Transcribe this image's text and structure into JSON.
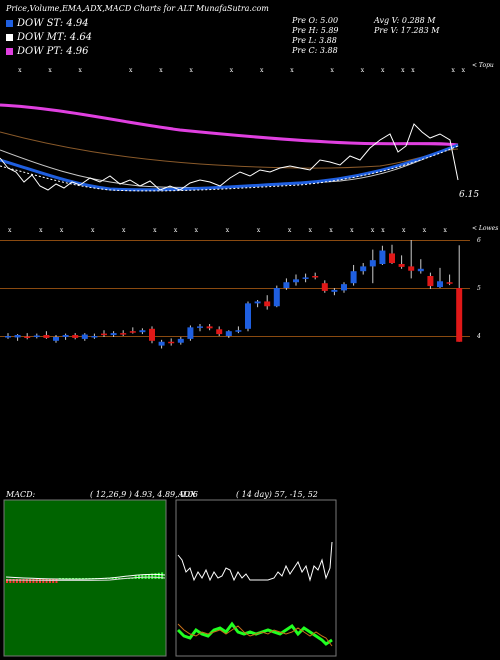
{
  "header": {
    "title": "Price,Volume,EMA,ADX,MACD Charts for ALT MunafaSutra.com",
    "pre_open": "Pre O: 5.00",
    "pre_high": "Pre H: 5.89",
    "pre_low": "Pre L: 3.88",
    "pre_close": "Pre C: 3.88",
    "avg_volume": "Avg V: 0.288 M",
    "pre_volume": "Pre V: 17.283 M"
  },
  "legend": [
    {
      "label": "DOW ST: 4.94",
      "color": "#1f5fe0"
    },
    {
      "label": "DOW MT: 4.64",
      "color": "#ffffff"
    },
    {
      "label": "DOW PT: 4.96",
      "color": "#e040e0"
    }
  ],
  "colors": {
    "up": "#1f5fe0",
    "down": "#e01818",
    "ema_long": "#e040e0",
    "ema_mid": "#8a5a2a",
    "gridline": "#8a4a10"
  },
  "ema_panel": {
    "corner_label": "< Topu",
    "last_value": "6.15",
    "marker_char": "x"
  },
  "price_panel": {
    "corner_label": "< Lowes",
    "levels": [
      "6",
      "5",
      "4"
    ]
  },
  "macd": {
    "title": "MACD:",
    "params": "( 12,26,9 ) 4.93, 4.89, 0.06"
  },
  "adx": {
    "title": "ADX",
    "params": "( 14 day) 57, -15, 52"
  },
  "chart_data": {
    "type": "candlestick",
    "levels": [
      6,
      5,
      4
    ],
    "candles": [
      {
        "o": 4.0,
        "h": 4.06,
        "l": 3.94,
        "c": 4.0
      },
      {
        "o": 3.97,
        "h": 4.04,
        "l": 3.9,
        "c": 4.02
      },
      {
        "o": 3.99,
        "h": 4.06,
        "l": 3.93,
        "c": 3.98
      },
      {
        "o": 4.0,
        "h": 4.05,
        "l": 3.95,
        "c": 4.01
      },
      {
        "o": 4.02,
        "h": 4.1,
        "l": 3.94,
        "c": 3.96
      },
      {
        "o": 3.9,
        "h": 4.02,
        "l": 3.86,
        "c": 3.98
      },
      {
        "o": 3.98,
        "h": 4.05,
        "l": 3.92,
        "c": 4.02
      },
      {
        "o": 4.02,
        "h": 4.06,
        "l": 3.93,
        "c": 3.96
      },
      {
        "o": 3.94,
        "h": 4.06,
        "l": 3.9,
        "c": 4.03
      },
      {
        "o": 3.98,
        "h": 4.05,
        "l": 3.94,
        "c": 4.0
      },
      {
        "o": 4.05,
        "h": 4.12,
        "l": 3.98,
        "c": 4.02
      },
      {
        "o": 4.02,
        "h": 4.1,
        "l": 3.98,
        "c": 4.06
      },
      {
        "o": 4.06,
        "h": 4.12,
        "l": 4.0,
        "c": 4.04
      },
      {
        "o": 4.1,
        "h": 4.18,
        "l": 4.05,
        "c": 4.08
      },
      {
        "o": 4.08,
        "h": 4.16,
        "l": 4.04,
        "c": 4.12
      },
      {
        "o": 4.15,
        "h": 4.2,
        "l": 3.85,
        "c": 3.9
      },
      {
        "o": 3.8,
        "h": 3.92,
        "l": 3.74,
        "c": 3.88
      },
      {
        "o": 3.88,
        "h": 3.95,
        "l": 3.8,
        "c": 3.86
      },
      {
        "o": 3.86,
        "h": 3.98,
        "l": 3.82,
        "c": 3.94
      },
      {
        "o": 3.94,
        "h": 4.22,
        "l": 3.9,
        "c": 4.18
      },
      {
        "o": 4.18,
        "h": 4.25,
        "l": 4.1,
        "c": 4.2
      },
      {
        "o": 4.2,
        "h": 4.25,
        "l": 4.12,
        "c": 4.16
      },
      {
        "o": 4.14,
        "h": 4.2,
        "l": 4.0,
        "c": 4.04
      },
      {
        "o": 4.0,
        "h": 4.12,
        "l": 3.96,
        "c": 4.1
      },
      {
        "o": 4.1,
        "h": 4.2,
        "l": 4.06,
        "c": 4.12
      },
      {
        "o": 4.15,
        "h": 4.72,
        "l": 4.1,
        "c": 4.68
      },
      {
        "o": 4.68,
        "h": 4.75,
        "l": 4.6,
        "c": 4.72
      },
      {
        "o": 4.72,
        "h": 4.85,
        "l": 4.55,
        "c": 4.62
      },
      {
        "o": 4.62,
        "h": 5.05,
        "l": 4.6,
        "c": 5.0
      },
      {
        "o": 5.0,
        "h": 5.2,
        "l": 4.96,
        "c": 5.12
      },
      {
        "o": 5.12,
        "h": 5.28,
        "l": 5.05,
        "c": 5.18
      },
      {
        "o": 5.2,
        "h": 5.3,
        "l": 5.12,
        "c": 5.22
      },
      {
        "o": 5.25,
        "h": 5.32,
        "l": 5.18,
        "c": 5.22
      },
      {
        "o": 5.1,
        "h": 5.16,
        "l": 4.9,
        "c": 4.94
      },
      {
        "o": 4.92,
        "h": 5.0,
        "l": 4.85,
        "c": 4.96
      },
      {
        "o": 4.95,
        "h": 5.12,
        "l": 4.9,
        "c": 5.08
      },
      {
        "o": 5.1,
        "h": 5.48,
        "l": 5.05,
        "c": 5.35
      },
      {
        "o": 5.35,
        "h": 5.52,
        "l": 5.28,
        "c": 5.45
      },
      {
        "o": 5.45,
        "h": 5.8,
        "l": 5.1,
        "c": 5.58
      },
      {
        "o": 5.5,
        "h": 5.88,
        "l": 5.48,
        "c": 5.78
      },
      {
        "o": 5.72,
        "h": 5.9,
        "l": 5.5,
        "c": 5.52
      },
      {
        "o": 5.5,
        "h": 5.68,
        "l": 5.4,
        "c": 5.44
      },
      {
        "o": 5.45,
        "h": 6.0,
        "l": 5.2,
        "c": 5.36
      },
      {
        "o": 5.35,
        "h": 5.6,
        "l": 5.3,
        "c": 5.4
      },
      {
        "o": 5.25,
        "h": 5.32,
        "l": 4.98,
        "c": 5.04
      },
      {
        "o": 5.02,
        "h": 5.42,
        "l": 5.0,
        "c": 5.14
      },
      {
        "o": 5.12,
        "h": 5.28,
        "l": 5.06,
        "c": 5.1
      },
      {
        "o": 5.0,
        "h": 5.89,
        "l": 3.88,
        "c": 3.88
      }
    ]
  }
}
